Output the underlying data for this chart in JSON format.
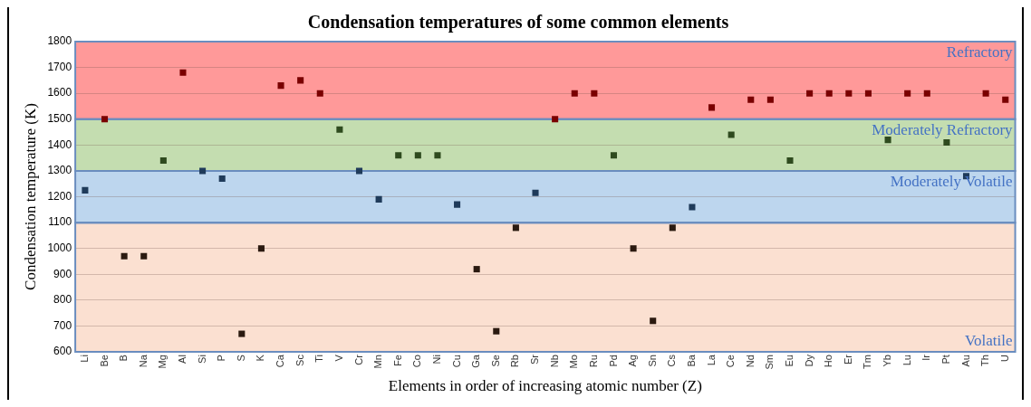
{
  "chart_data": {
    "type": "scatter",
    "title": "Condensation temperatures of some common elements",
    "xlabel": "Elements in order of increasing atomic number (Z)",
    "ylabel": "Condensation temperature (K)",
    "categories": [
      "Li",
      "Be",
      "B",
      "Na",
      "Mg",
      "Al",
      "Si",
      "P",
      "S",
      "K",
      "Ca",
      "Sc",
      "Ti",
      "V",
      "Cr",
      "Mn",
      "Fe",
      "Co",
      "Ni",
      "Cu",
      "Ga",
      "Se",
      "Rb",
      "Sr",
      "Nb",
      "Mo",
      "Ru",
      "Pd",
      "Ag",
      "Sn",
      "Cs",
      "Ba",
      "La",
      "Ce",
      "Nd",
      "Sm",
      "Eu",
      "Dy",
      "Ho",
      "Er",
      "Tm",
      "Yb",
      "Lu",
      "Ir",
      "Pt",
      "Au",
      "Th",
      "U"
    ],
    "values": [
      1225,
      1500,
      970,
      970,
      1340,
      1680,
      1300,
      1270,
      670,
      1000,
      1630,
      1650,
      1600,
      1460,
      1300,
      1190,
      1360,
      1360,
      1360,
      1170,
      920,
      680,
      1080,
      1215,
      1500,
      1600,
      1600,
      1360,
      1000,
      720,
      1080,
      1160,
      1545,
      1440,
      1575,
      1575,
      1340,
      1600,
      1600,
      1600,
      1600,
      1420,
      1600,
      1600,
      1410,
      1280,
      1600,
      1575
    ],
    "colors": [
      "#1f3b5a",
      "#7a0000",
      "#2b1a10",
      "#2b1a10",
      "#2e4a1e",
      "#7a0000",
      "#1f3b5a",
      "#1f3b5a",
      "#2b1a10",
      "#2b1a10",
      "#7a0000",
      "#7a0000",
      "#7a0000",
      "#2e4a1e",
      "#1f3b5a",
      "#1f3b5a",
      "#2e4a1e",
      "#2e4a1e",
      "#2e4a1e",
      "#1f3b5a",
      "#2b1a10",
      "#2b1a10",
      "#2b1a10",
      "#1f3b5a",
      "#7a0000",
      "#7a0000",
      "#7a0000",
      "#2e4a1e",
      "#2b1a10",
      "#2b1a10",
      "#2b1a10",
      "#1f3b5a",
      "#7a0000",
      "#2e4a1e",
      "#7a0000",
      "#7a0000",
      "#2e4a1e",
      "#7a0000",
      "#7a0000",
      "#7a0000",
      "#7a0000",
      "#2e4a1e",
      "#7a0000",
      "#7a0000",
      "#2e4a1e",
      "#1f3b5a",
      "#7a0000",
      "#7a0000"
    ],
    "ylim": [
      600,
      1800
    ],
    "yticks": [
      600,
      700,
      800,
      900,
      1000,
      1100,
      1200,
      1300,
      1400,
      1500,
      1600,
      1700,
      1800
    ],
    "grid": "y",
    "marker": "square",
    "legend": false,
    "bands": [
      {
        "axis": "y",
        "from": 1500,
        "to": 1800,
        "label": "Refractory",
        "color": "#ff9999"
      },
      {
        "axis": "y",
        "from": 1300,
        "to": 1500,
        "label": "Moderately Refractory",
        "color": "#c4ddb0"
      },
      {
        "axis": "y",
        "from": 1100,
        "to": 1300,
        "label": "Moderately Volatile",
        "color": "#bdd6ee"
      },
      {
        "axis": "y",
        "from": 600,
        "to": 1100,
        "label": "Volatile",
        "color": "#fbe0d1"
      }
    ]
  }
}
